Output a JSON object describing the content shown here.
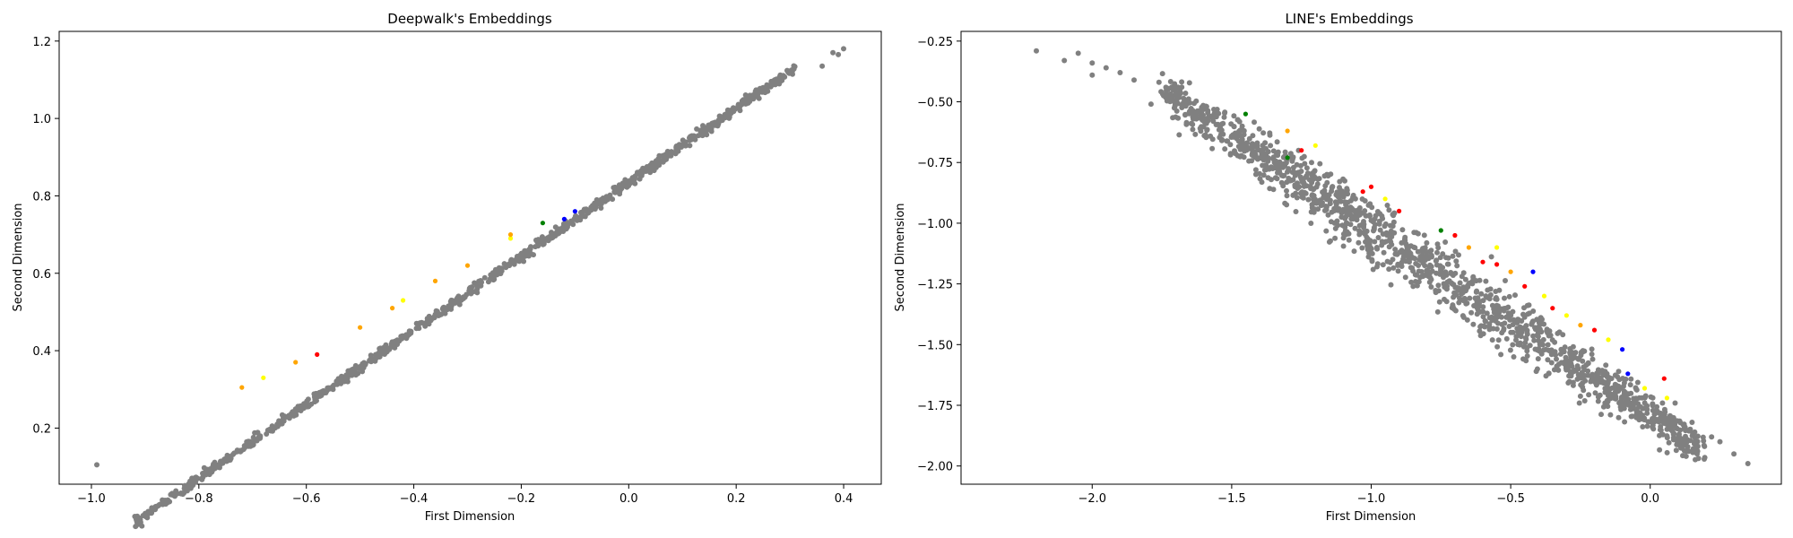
{
  "chart_data": [
    {
      "type": "scatter",
      "title": "Deepwalk's Embeddings",
      "xlabel": "First Dimension",
      "ylabel": "Second Dimension",
      "xlim": [
        -1.06,
        0.47
      ],
      "ylim": [
        0.055,
        1.225
      ],
      "xticks": [
        -1.0,
        -0.8,
        -0.6,
        -0.4,
        -0.2,
        0.0,
        0.2,
        0.4
      ],
      "xtick_labels": [
        "−1.0",
        "−0.8",
        "−0.6",
        "−0.4",
        "−0.2",
        "0.0",
        "0.2",
        "0.4"
      ],
      "yticks": [
        0.2,
        0.4,
        0.6,
        0.8,
        1.0,
        1.2
      ],
      "ytick_labels": [
        "0.2",
        "0.4",
        "0.6",
        "0.8",
        "1.0",
        "1.2"
      ],
      "grid": false,
      "colors": {
        "base": "#808080",
        "highlight": [
          "#ffff00",
          "#ffa500",
          "#ff0000",
          "#008000",
          "#0000ff"
        ]
      },
      "trend": {
        "x_range": [
          -0.92,
          0.31
        ],
        "y_at_x0": 0.835,
        "slope": 0.957,
        "spread": 0.006
      },
      "outliers": [
        [
          -0.99,
          0.105
        ],
        [
          0.36,
          1.135
        ],
        [
          0.38,
          1.17
        ],
        [
          0.4,
          1.18
        ],
        [
          0.39,
          1.165
        ]
      ],
      "highlights": [
        {
          "x": -0.68,
          "y": 0.33,
          "color": "#ffff00"
        },
        {
          "x": -0.72,
          "y": 0.305,
          "color": "#ffa500"
        },
        {
          "x": -0.58,
          "y": 0.39,
          "color": "#ff0000"
        },
        {
          "x": -0.5,
          "y": 0.46,
          "color": "#ffa500"
        },
        {
          "x": -0.42,
          "y": 0.53,
          "color": "#ffff00"
        },
        {
          "x": -0.36,
          "y": 0.58,
          "color": "#ffa500"
        },
        {
          "x": -0.44,
          "y": 0.51,
          "color": "#ffa500"
        },
        {
          "x": -0.22,
          "y": 0.69,
          "color": "#ffff00"
        },
        {
          "x": -0.22,
          "y": 0.7,
          "color": "#ffa500"
        },
        {
          "x": -0.16,
          "y": 0.73,
          "color": "#008000"
        },
        {
          "x": -0.1,
          "y": 0.76,
          "color": "#0000ff"
        },
        {
          "x": -0.3,
          "y": 0.62,
          "color": "#ffa500"
        },
        {
          "x": -0.62,
          "y": 0.37,
          "color": "#ffa500"
        },
        {
          "x": -0.12,
          "y": 0.74,
          "color": "#0000ff"
        }
      ]
    },
    {
      "type": "scatter",
      "title": "LINE's Embeddings",
      "xlabel": "First Dimension",
      "ylabel": "Second Dimension",
      "xlim": [
        -2.47,
        0.47
      ],
      "ylim": [
        -2.075,
        -0.21
      ],
      "xticks": [
        -2.0,
        -1.5,
        -1.0,
        -0.5,
        0.0
      ],
      "xtick_labels": [
        "−2.0",
        "−1.5",
        "−1.0",
        "−0.5",
        "0.0"
      ],
      "yticks": [
        -2.0,
        -1.75,
        -1.5,
        -1.25,
        -1.0,
        -0.75,
        -0.5,
        -0.25
      ],
      "ytick_labels": [
        "−2.00",
        "−1.75",
        "−1.50",
        "−1.25",
        "−1.00",
        "−0.75",
        "−0.50",
        "−0.25"
      ],
      "grid": false,
      "colors": {
        "base": "#808080",
        "highlight": [
          "#ffff00",
          "#ffa500",
          "#ff0000",
          "#008000",
          "#0000ff"
        ]
      },
      "trend": {
        "x_range": [
          -1.75,
          0.18
        ],
        "y_at_x0": -1.6,
        "slope": 0.6,
        "spread": 0.045
      },
      "outliers": [
        [
          -2.2,
          -0.29
        ],
        [
          -2.1,
          -0.33
        ],
        [
          -2.05,
          -0.3
        ],
        [
          -2.0,
          -0.34
        ],
        [
          -1.95,
          -0.36
        ],
        [
          -1.9,
          -0.38
        ],
        [
          -2.0,
          -0.39
        ],
        [
          -1.85,
          -0.41
        ],
        [
          0.25,
          -1.9
        ],
        [
          0.3,
          -1.95
        ],
        [
          0.35,
          -1.99
        ],
        [
          0.22,
          -1.88
        ],
        [
          0.15,
          -1.82
        ]
      ],
      "highlights": [
        {
          "x": -1.45,
          "y": -0.55,
          "color": "#008000"
        },
        {
          "x": -1.3,
          "y": -0.62,
          "color": "#ffa500"
        },
        {
          "x": -1.2,
          "y": -0.68,
          "color": "#ffff00"
        },
        {
          "x": -1.25,
          "y": -0.7,
          "color": "#ff0000"
        },
        {
          "x": -1.3,
          "y": -0.73,
          "color": "#008000"
        },
        {
          "x": -1.03,
          "y": -0.87,
          "color": "#ff0000"
        },
        {
          "x": -1.0,
          "y": -0.85,
          "color": "#ff0000"
        },
        {
          "x": -0.95,
          "y": -0.9,
          "color": "#ffff00"
        },
        {
          "x": -0.9,
          "y": -0.95,
          "color": "#ff0000"
        },
        {
          "x": -0.75,
          "y": -1.03,
          "color": "#008000"
        },
        {
          "x": -0.7,
          "y": -1.05,
          "color": "#ff0000"
        },
        {
          "x": -0.65,
          "y": -1.1,
          "color": "#ffa500"
        },
        {
          "x": -0.6,
          "y": -1.16,
          "color": "#ff0000"
        },
        {
          "x": -0.55,
          "y": -1.1,
          "color": "#ffff00"
        },
        {
          "x": -0.5,
          "y": -1.2,
          "color": "#ffa500"
        },
        {
          "x": -0.42,
          "y": -1.2,
          "color": "#0000ff"
        },
        {
          "x": -0.45,
          "y": -1.26,
          "color": "#ff0000"
        },
        {
          "x": -0.38,
          "y": -1.3,
          "color": "#ffff00"
        },
        {
          "x": -0.35,
          "y": -1.35,
          "color": "#ff0000"
        },
        {
          "x": -0.3,
          "y": -1.38,
          "color": "#ffff00"
        },
        {
          "x": -0.25,
          "y": -1.42,
          "color": "#ffa500"
        },
        {
          "x": -0.2,
          "y": -1.44,
          "color": "#ff0000"
        },
        {
          "x": -0.15,
          "y": -1.48,
          "color": "#ffff00"
        },
        {
          "x": -0.1,
          "y": -1.52,
          "color": "#0000ff"
        },
        {
          "x": -0.08,
          "y": -1.62,
          "color": "#0000ff"
        },
        {
          "x": 0.05,
          "y": -1.64,
          "color": "#ff0000"
        },
        {
          "x": -0.02,
          "y": -1.68,
          "color": "#ffff00"
        },
        {
          "x": 0.06,
          "y": -1.72,
          "color": "#ffff00"
        },
        {
          "x": -0.55,
          "y": -1.17,
          "color": "#ff0000"
        }
      ]
    }
  ]
}
